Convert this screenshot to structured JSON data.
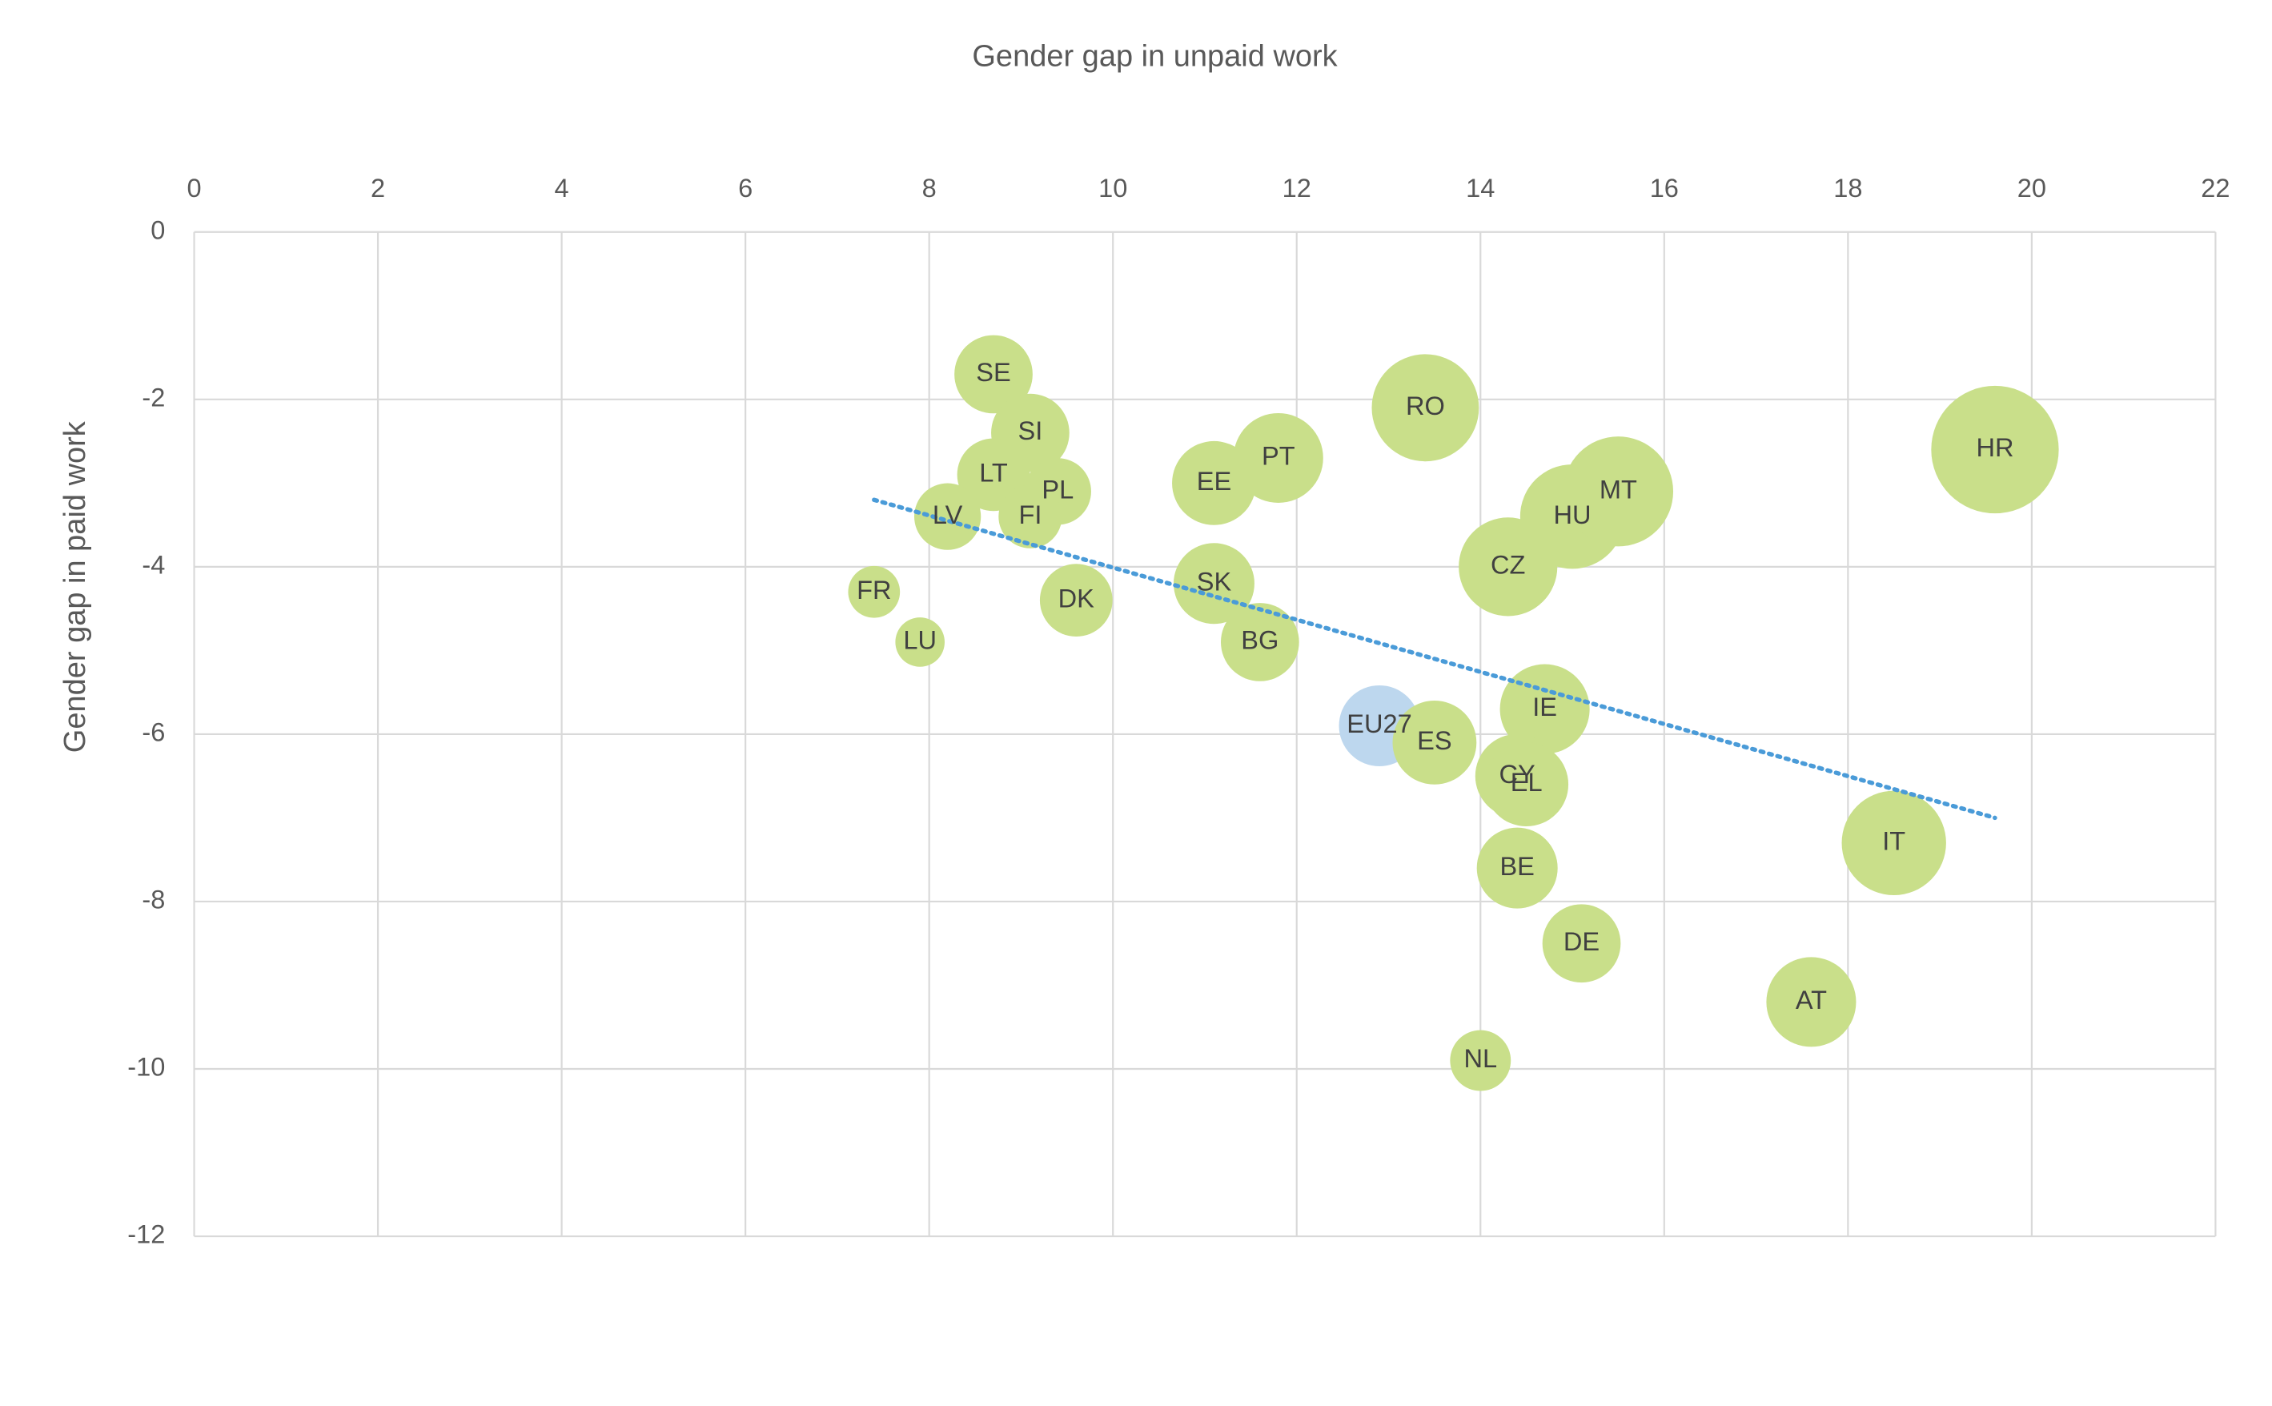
{
  "chart_data": {
    "type": "bubble",
    "title": "Gender gap in unpaid work",
    "y_label": "Gender gap in paid work",
    "labels": [
      "SE",
      "SI",
      "LT",
      "PL",
      "LV",
      "FI",
      "FR",
      "LU",
      "DK",
      "EE",
      "PT",
      "SK",
      "BG",
      "RO",
      "CZ",
      "HU",
      "MT",
      "HR",
      "IE",
      "EU27",
      "ES",
      "CY",
      "EL",
      "BE",
      "DE",
      "AT",
      "IT",
      "NL"
    ],
    "x": [
      8.7,
      9.1,
      8.7,
      9.4,
      8.2,
      9.1,
      7.4,
      7.9,
      9.6,
      11.1,
      11.8,
      11.1,
      11.6,
      13.4,
      14.3,
      15.0,
      15.5,
      19.6,
      14.7,
      12.9,
      13.5,
      14.4,
      14.5,
      14.4,
      15.1,
      17.6,
      18.5,
      14.0
    ],
    "values": [
      -1.7,
      -2.4,
      -2.9,
      -3.1,
      -3.4,
      -3.4,
      -4.3,
      -4.9,
      -4.4,
      -3.0,
      -2.7,
      -4.2,
      -4.9,
      -2.1,
      -4.0,
      -3.4,
      -3.1,
      -2.6,
      -5.7,
      -5.9,
      -6.1,
      -6.5,
      -6.6,
      -7.6,
      -8.5,
      -9.2,
      -7.3,
      -9.9
    ],
    "sizes": [
      73,
      73,
      63,
      53,
      53,
      48,
      32,
      29,
      63,
      84,
      96,
      78,
      73,
      137,
      116,
      130,
      144,
      194,
      96,
      78,
      84,
      84,
      84,
      78,
      73,
      96,
      130,
      44
    ],
    "colors": [
      "#c9df8a",
      "#c9df8a",
      "#c9df8a",
      "#c9df8a",
      "#c9df8a",
      "#c9df8a",
      "#c9df8a",
      "#c9df8a",
      "#c9df8a",
      "#c9df8a",
      "#c9df8a",
      "#c9df8a",
      "#c9df8a",
      "#c9df8a",
      "#c9df8a",
      "#c9df8a",
      "#c9df8a",
      "#c9df8a",
      "#c9df8a",
      "#bdd7ee",
      "#c9df8a",
      "#c9df8a",
      "#c9df8a",
      "#c9df8a",
      "#c9df8a",
      "#c9df8a",
      "#c9df8a",
      "#c9df8a"
    ],
    "trendline": {
      "x": [
        7.4,
        19.6
      ],
      "values": [
        -3.2,
        -7.0
      ],
      "color": "#4a9bd8"
    },
    "xlim": [
      0,
      22
    ],
    "xticks": [
      0,
      2,
      4,
      6,
      8,
      10,
      12,
      14,
      16,
      18,
      20,
      22
    ],
    "ylim": [
      -12,
      0
    ],
    "yticks": [
      0,
      -2,
      -4,
      -6,
      -8,
      -10,
      -12
    ],
    "grid": true
  }
}
